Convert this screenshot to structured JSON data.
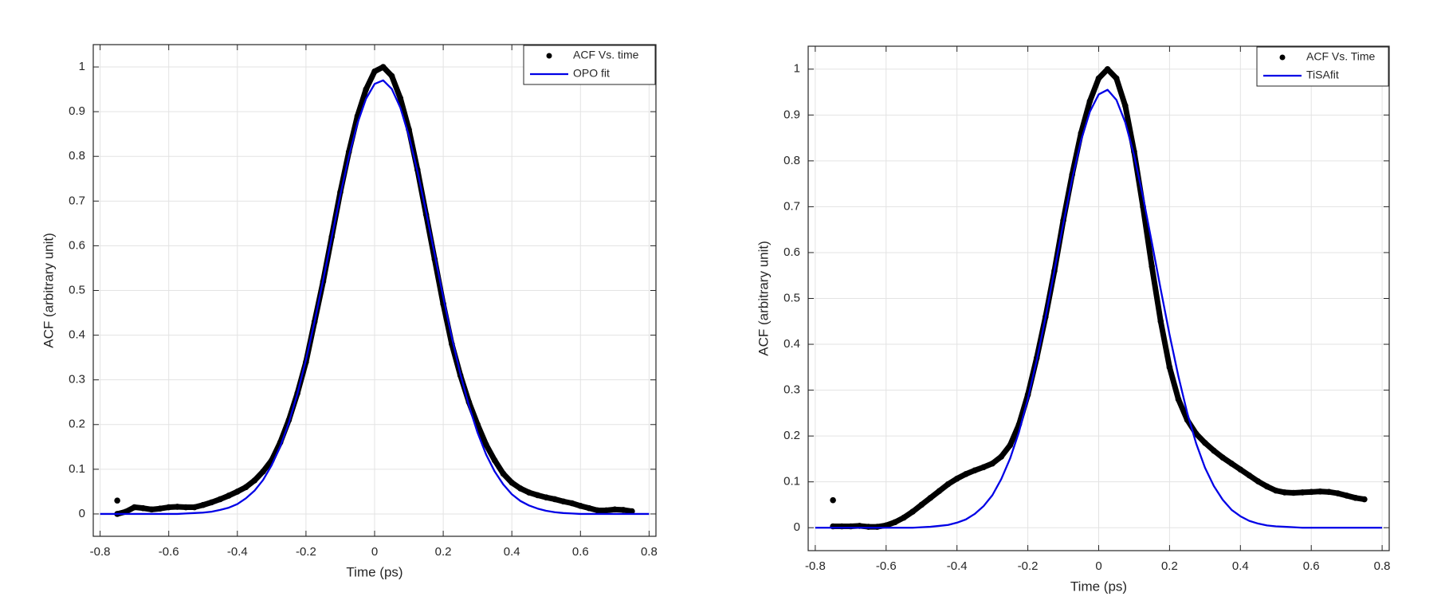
{
  "chart_data": [
    {
      "type": "line",
      "xlabel": "Time (ps)",
      "ylabel": "ACF (arbitrary unit)",
      "xlim": [
        -0.82,
        0.82
      ],
      "ylim": [
        -0.05,
        1.05
      ],
      "xticks": [
        -0.8,
        -0.6,
        -0.4,
        -0.2,
        0,
        0.2,
        0.4,
        0.6,
        0.8
      ],
      "yticks": [
        0,
        0.1,
        0.2,
        0.3,
        0.4,
        0.5,
        0.6,
        0.7,
        0.8,
        0.9,
        1
      ],
      "grid": true,
      "legend": "northeast",
      "series": [
        {
          "name": "ACF Vs. time",
          "color": "#000000",
          "mode": "markers",
          "x": [
            -0.75,
            null,
            -0.75,
            -0.725,
            -0.7,
            -0.675,
            -0.65,
            -0.625,
            -0.6,
            -0.575,
            -0.55,
            -0.525,
            -0.5,
            -0.475,
            -0.45,
            -0.425,
            -0.4,
            -0.375,
            -0.35,
            -0.325,
            -0.3,
            -0.275,
            -0.25,
            -0.225,
            -0.2,
            -0.175,
            -0.15,
            -0.125,
            -0.1,
            -0.075,
            -0.05,
            -0.025,
            0,
            0.025,
            0.05,
            0.075,
            0.1,
            0.125,
            0.15,
            0.175,
            0.2,
            0.225,
            0.25,
            0.275,
            0.3,
            0.325,
            0.35,
            0.375,
            0.4,
            0.425,
            0.45,
            0.475,
            0.5,
            0.525,
            0.55,
            0.575,
            0.6,
            0.625,
            0.65,
            0.675,
            0.7,
            0.725,
            0.75
          ],
          "values": [
            0.03,
            null,
            0,
            0.005,
            0.015,
            0.013,
            0.01,
            0.012,
            0.015,
            0.016,
            0.015,
            0.015,
            0.02,
            0.026,
            0.033,
            0.041,
            0.05,
            0.06,
            0.075,
            0.095,
            0.12,
            0.16,
            0.21,
            0.27,
            0.34,
            0.43,
            0.52,
            0.62,
            0.72,
            0.81,
            0.89,
            0.95,
            0.99,
            1.0,
            0.98,
            0.93,
            0.86,
            0.77,
            0.67,
            0.57,
            0.47,
            0.38,
            0.31,
            0.25,
            0.2,
            0.155,
            0.12,
            0.09,
            0.07,
            0.057,
            0.048,
            0.042,
            0.037,
            0.033,
            0.028,
            0.024,
            0.018,
            0.013,
            0.008,
            0.008,
            0.01,
            0.009,
            0.006
          ]
        },
        {
          "name": "OPO fit",
          "color": "#0000e6",
          "mode": "line",
          "x": [
            -0.8,
            -0.775,
            -0.75,
            -0.725,
            -0.7,
            -0.675,
            -0.65,
            -0.625,
            -0.6,
            -0.575,
            -0.55,
            -0.525,
            -0.5,
            -0.475,
            -0.45,
            -0.425,
            -0.4,
            -0.375,
            -0.35,
            -0.325,
            -0.3,
            -0.275,
            -0.25,
            -0.225,
            -0.2,
            -0.175,
            -0.15,
            -0.125,
            -0.1,
            -0.075,
            -0.05,
            -0.025,
            0,
            0.025,
            0.05,
            0.075,
            0.1,
            0.125,
            0.15,
            0.175,
            0.2,
            0.225,
            0.25,
            0.275,
            0.3,
            0.325,
            0.35,
            0.375,
            0.4,
            0.425,
            0.45,
            0.475,
            0.5,
            0.525,
            0.55,
            0.575,
            0.6,
            0.625,
            0.65,
            0.675,
            0.7,
            0.725,
            0.75,
            0.775,
            0.8
          ],
          "values": [
            0,
            0,
            0,
            0,
            0,
            0,
            0,
            0,
            0,
            0,
            0.001,
            0.002,
            0.003,
            0.005,
            0.009,
            0.014,
            0.022,
            0.035,
            0.052,
            0.076,
            0.109,
            0.151,
            0.204,
            0.269,
            0.345,
            0.43,
            0.523,
            0.619,
            0.713,
            0.8,
            0.874,
            0.929,
            0.962,
            0.97,
            0.951,
            0.909,
            0.846,
            0.766,
            0.676,
            0.581,
            0.485,
            0.395,
            0.313,
            0.242,
            0.182,
            0.133,
            0.095,
            0.066,
            0.044,
            0.029,
            0.019,
            0.012,
            0.007,
            0.004,
            0.002,
            0.001,
            0,
            0,
            0,
            0,
            0,
            0,
            0,
            0,
            0
          ]
        }
      ]
    },
    {
      "type": "line",
      "xlabel": "Time (ps)",
      "ylabel": "ACF (arbitrary unit)",
      "xlim": [
        -0.82,
        0.82
      ],
      "ylim": [
        -0.05,
        1.05
      ],
      "xticks": [
        -0.8,
        -0.6,
        -0.4,
        -0.2,
        0,
        0.2,
        0.4,
        0.6,
        0.8
      ],
      "yticks": [
        0,
        0.1,
        0.2,
        0.3,
        0.4,
        0.5,
        0.6,
        0.7,
        0.8,
        0.9,
        1
      ],
      "grid": true,
      "legend": "northeast",
      "series": [
        {
          "name": "ACF Vs. Time",
          "color": "#000000",
          "mode": "markers",
          "x": [
            -0.75,
            null,
            -0.75,
            -0.725,
            -0.7,
            -0.675,
            -0.65,
            -0.625,
            -0.6,
            -0.575,
            -0.55,
            -0.525,
            -0.5,
            -0.475,
            -0.45,
            -0.425,
            -0.4,
            -0.375,
            -0.35,
            -0.325,
            -0.3,
            -0.275,
            -0.25,
            -0.225,
            -0.2,
            -0.175,
            -0.15,
            -0.125,
            -0.1,
            -0.075,
            -0.05,
            -0.025,
            0,
            0.025,
            0.05,
            0.075,
            0.1,
            0.125,
            0.15,
            0.175,
            0.2,
            0.225,
            0.25,
            0.275,
            0.3,
            0.325,
            0.35,
            0.375,
            0.4,
            0.425,
            0.45,
            0.475,
            0.5,
            0.525,
            0.55,
            0.575,
            0.6,
            0.625,
            0.65,
            0.675,
            0.7,
            0.725,
            0.75
          ],
          "values": [
            0.06,
            null,
            0.003,
            0.003,
            0.003,
            0.004,
            0.002,
            0.002,
            0.005,
            0.012,
            0.022,
            0.035,
            0.05,
            0.065,
            0.08,
            0.095,
            0.107,
            0.117,
            0.125,
            0.132,
            0.14,
            0.155,
            0.18,
            0.225,
            0.29,
            0.37,
            0.46,
            0.56,
            0.67,
            0.77,
            0.86,
            0.93,
            0.98,
            1.0,
            0.98,
            0.92,
            0.82,
            0.7,
            0.57,
            0.45,
            0.35,
            0.28,
            0.235,
            0.205,
            0.185,
            0.168,
            0.153,
            0.14,
            0.127,
            0.114,
            0.101,
            0.09,
            0.081,
            0.077,
            0.076,
            0.077,
            0.078,
            0.079,
            0.078,
            0.075,
            0.07,
            0.065,
            0.062
          ]
        },
        {
          "name": "TiSAfit",
          "color": "#0000e6",
          "mode": "line",
          "x": [
            -0.8,
            -0.775,
            -0.75,
            -0.725,
            -0.7,
            -0.675,
            -0.65,
            -0.625,
            -0.6,
            -0.575,
            -0.55,
            -0.525,
            -0.5,
            -0.475,
            -0.45,
            -0.425,
            -0.4,
            -0.375,
            -0.35,
            -0.325,
            -0.3,
            -0.275,
            -0.25,
            -0.225,
            -0.2,
            -0.175,
            -0.15,
            -0.125,
            -0.1,
            -0.075,
            -0.05,
            -0.025,
            0,
            0.025,
            0.05,
            0.075,
            0.1,
            0.125,
            0.15,
            0.175,
            0.2,
            0.225,
            0.25,
            0.275,
            0.3,
            0.325,
            0.35,
            0.375,
            0.4,
            0.425,
            0.45,
            0.475,
            0.5,
            0.525,
            0.55,
            0.575,
            0.6,
            0.625,
            0.65,
            0.675,
            0.7,
            0.725,
            0.75,
            0.775,
            0.8
          ],
          "values": [
            0,
            0,
            0,
            0,
            0,
            0,
            0,
            0,
            0,
            0,
            0,
            0,
            0.001,
            0.002,
            0.004,
            0.006,
            0.011,
            0.018,
            0.03,
            0.047,
            0.071,
            0.106,
            0.151,
            0.209,
            0.281,
            0.365,
            0.459,
            0.561,
            0.663,
            0.76,
            0.844,
            0.907,
            0.945,
            0.955,
            0.933,
            0.884,
            0.812,
            0.722,
            0.622,
            0.52,
            0.421,
            0.33,
            0.25,
            0.184,
            0.131,
            0.091,
            0.061,
            0.039,
            0.025,
            0.015,
            0.009,
            0.005,
            0.003,
            0.002,
            0.001,
            0,
            0,
            0,
            0,
            0,
            0,
            0,
            0,
            0,
            0
          ]
        }
      ]
    }
  ]
}
